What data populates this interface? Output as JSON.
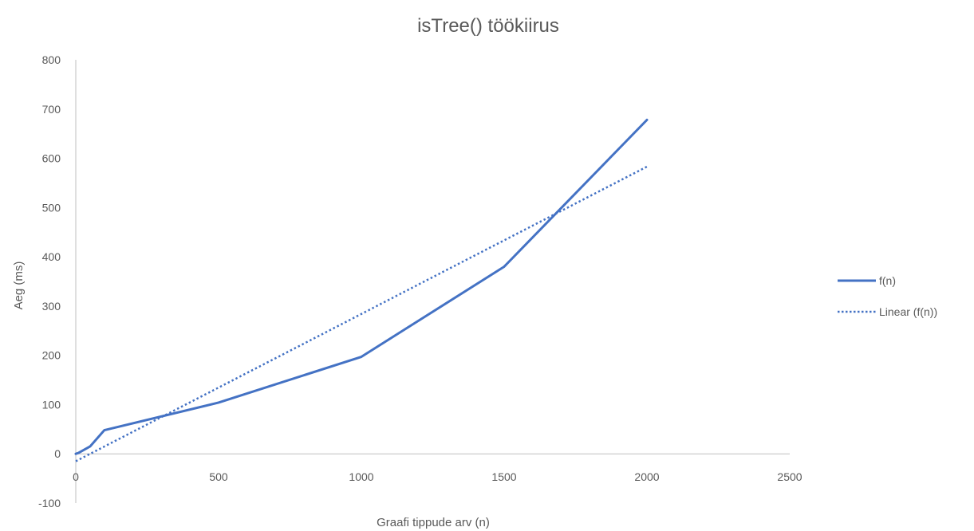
{
  "chart_data": {
    "type": "line",
    "title": "isTree() töökiirus",
    "xlabel": "Graafi tippude arv (n)",
    "ylabel": "Aeg (ms)",
    "xlim": [
      0,
      2500
    ],
    "ylim": [
      -100,
      800
    ],
    "x_ticks": [
      0,
      500,
      1000,
      1500,
      2000,
      2500
    ],
    "y_ticks": [
      -100,
      0,
      100,
      200,
      300,
      400,
      500,
      600,
      700,
      800
    ],
    "grid": false,
    "legend_position": "right",
    "series": [
      {
        "name": "f(n)",
        "style": "solid",
        "color": "#4472c4",
        "x": [
          0,
          10,
          50,
          100,
          500,
          1000,
          1500,
          2000
        ],
        "y": [
          0,
          2,
          15,
          48,
          104,
          197,
          380,
          678
        ]
      },
      {
        "name": "Linear (f(n))",
        "style": "dotted",
        "color": "#4472c4",
        "x": [
          0,
          2000
        ],
        "y": [
          -15,
          583
        ]
      }
    ]
  }
}
